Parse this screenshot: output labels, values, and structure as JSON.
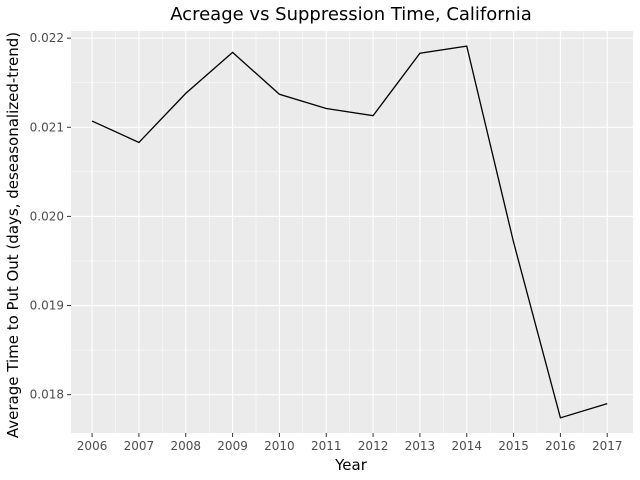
{
  "chart_data": {
    "type": "line",
    "title": "Acreage vs Suppression Time, California",
    "xlabel": "Year",
    "ylabel": "Average Time to Put Out (days, deseasonalized-trend)",
    "x": [
      2006,
      2007,
      2008,
      2009,
      2010,
      2011,
      2012,
      2013,
      2014,
      2015,
      2016,
      2017
    ],
    "series": [
      {
        "values": [
          0.02107,
          0.02083,
          0.02138,
          0.02184,
          0.02137,
          0.02121,
          0.02113,
          0.02183,
          0.02191,
          0.01971,
          0.01774,
          0.0179
        ]
      }
    ],
    "xlim": [
      2005.55,
      2017.55
    ],
    "ylim": [
      0.01757,
      0.02208
    ],
    "x_ticks": [
      "2006",
      "2007",
      "2008",
      "2009",
      "2010",
      "2011",
      "2012",
      "2013",
      "2014",
      "2015",
      "2016",
      "2017"
    ],
    "y_ticks": [
      "0.018",
      "0.019",
      "0.020",
      "0.021",
      "0.022"
    ],
    "grid": true,
    "legend": "none",
    "colors": {
      "panel": "#ebebeb",
      "grid": "#ffffff",
      "line": "#000000",
      "text": "#000000",
      "tick_text": "#4d4d4d"
    }
  }
}
